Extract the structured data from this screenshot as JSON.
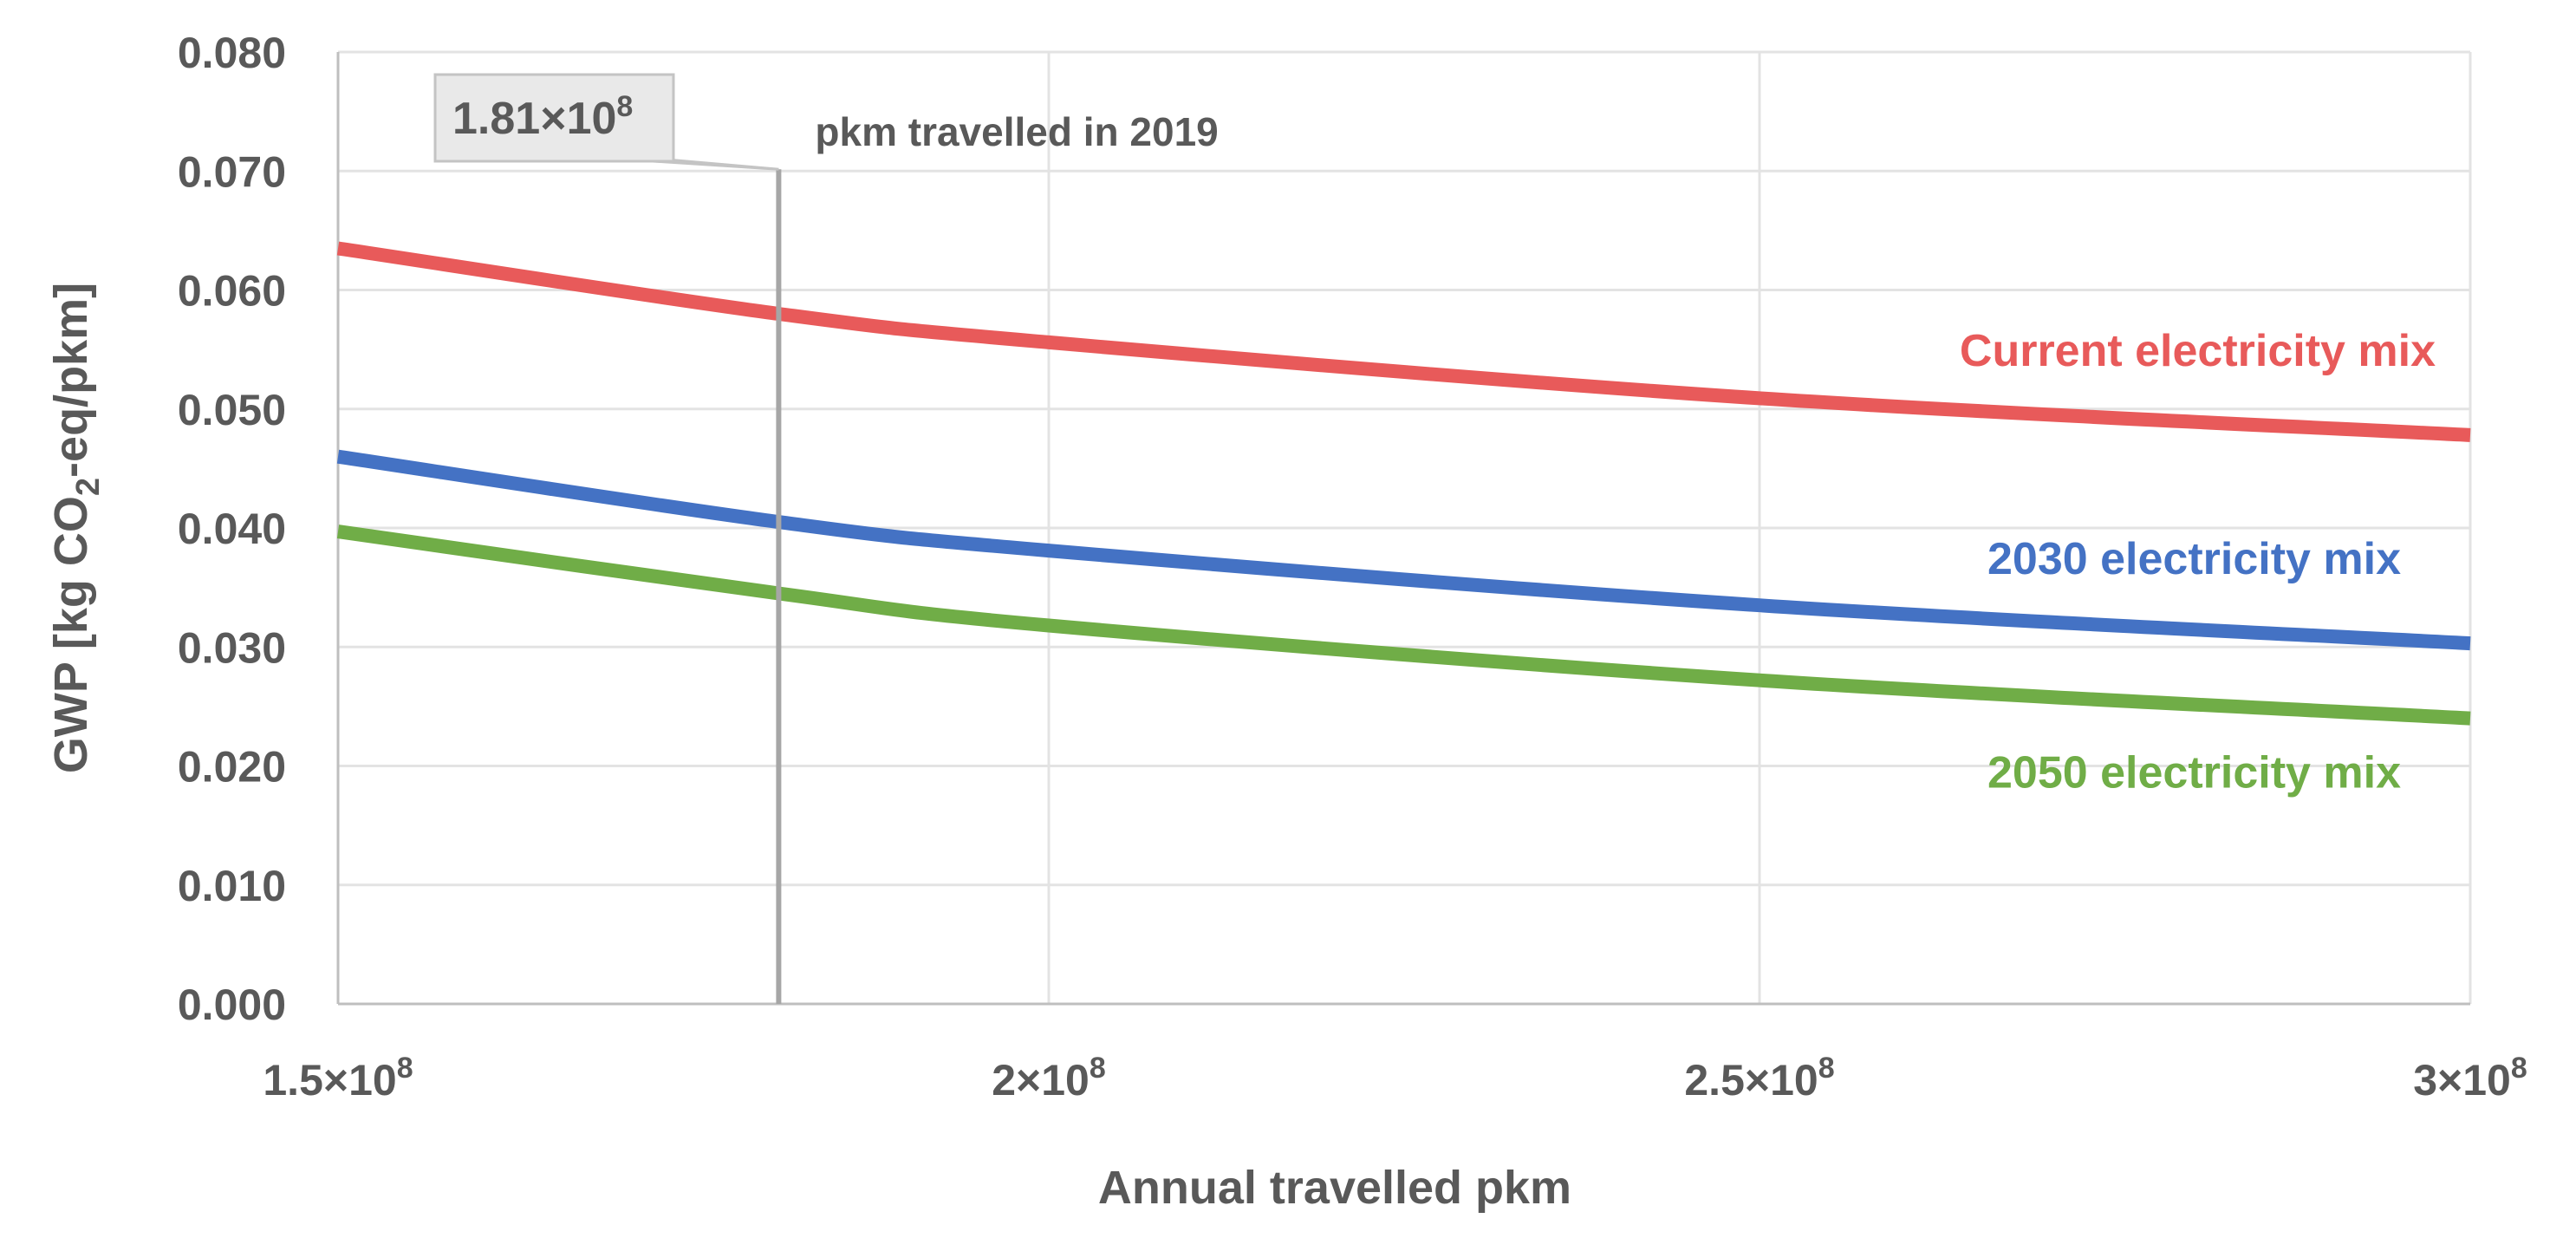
{
  "chart_data": {
    "type": "line",
    "title": "",
    "xlabel": "Annual travelled pkm",
    "ylabel": "GWP [kg CO₂-eq/pkm]",
    "ylabel_parts": {
      "prefix": "GWP [kg CO",
      "sub": "2",
      "suffix": "-eq/pkm]"
    },
    "xlim": [
      150000000,
      300000000
    ],
    "ylim": [
      0,
      0.08
    ],
    "grid": true,
    "x_ticks": [
      {
        "value": 150000000,
        "mantissa": "1.5×10",
        "exp": "8"
      },
      {
        "value": 200000000,
        "mantissa": "2×10",
        "exp": "8"
      },
      {
        "value": 250000000,
        "mantissa": "2.5×10",
        "exp": "8"
      },
      {
        "value": 300000000,
        "mantissa": "3×10",
        "exp": "8"
      }
    ],
    "y_ticks": [
      {
        "value": 0.0,
        "label": "0.000"
      },
      {
        "value": 0.01,
        "label": "0.010"
      },
      {
        "value": 0.02,
        "label": "0.020"
      },
      {
        "value": 0.03,
        "label": "0.030"
      },
      {
        "value": 0.04,
        "label": "0.040"
      },
      {
        "value": 0.05,
        "label": "0.050"
      },
      {
        "value": 0.06,
        "label": "0.060"
      },
      {
        "value": 0.07,
        "label": "0.070"
      },
      {
        "value": 0.08,
        "label": "0.080"
      }
    ],
    "x": [
      150000000,
      181000000,
      200000000,
      250000000,
      300000000
    ],
    "series": [
      {
        "name": "Current electricity mix",
        "color": "#e85a5a",
        "values": [
          0.0635,
          0.058,
          0.0556,
          0.0509,
          0.0478
        ]
      },
      {
        "name": "2030 electricity mix",
        "color": "#4472c4",
        "values": [
          0.046,
          0.0405,
          0.0381,
          0.0335,
          0.0303
        ]
      },
      {
        "name": "2050 electricity mix",
        "color": "#70ad47",
        "values": [
          0.0397,
          0.0345,
          0.0318,
          0.0272,
          0.024
        ]
      }
    ],
    "annotations": {
      "vline_x": 181000000,
      "vline_label": "pkm travelled in 2019",
      "callout": {
        "mantissa": "1.81×10",
        "exp": "8"
      }
    }
  }
}
